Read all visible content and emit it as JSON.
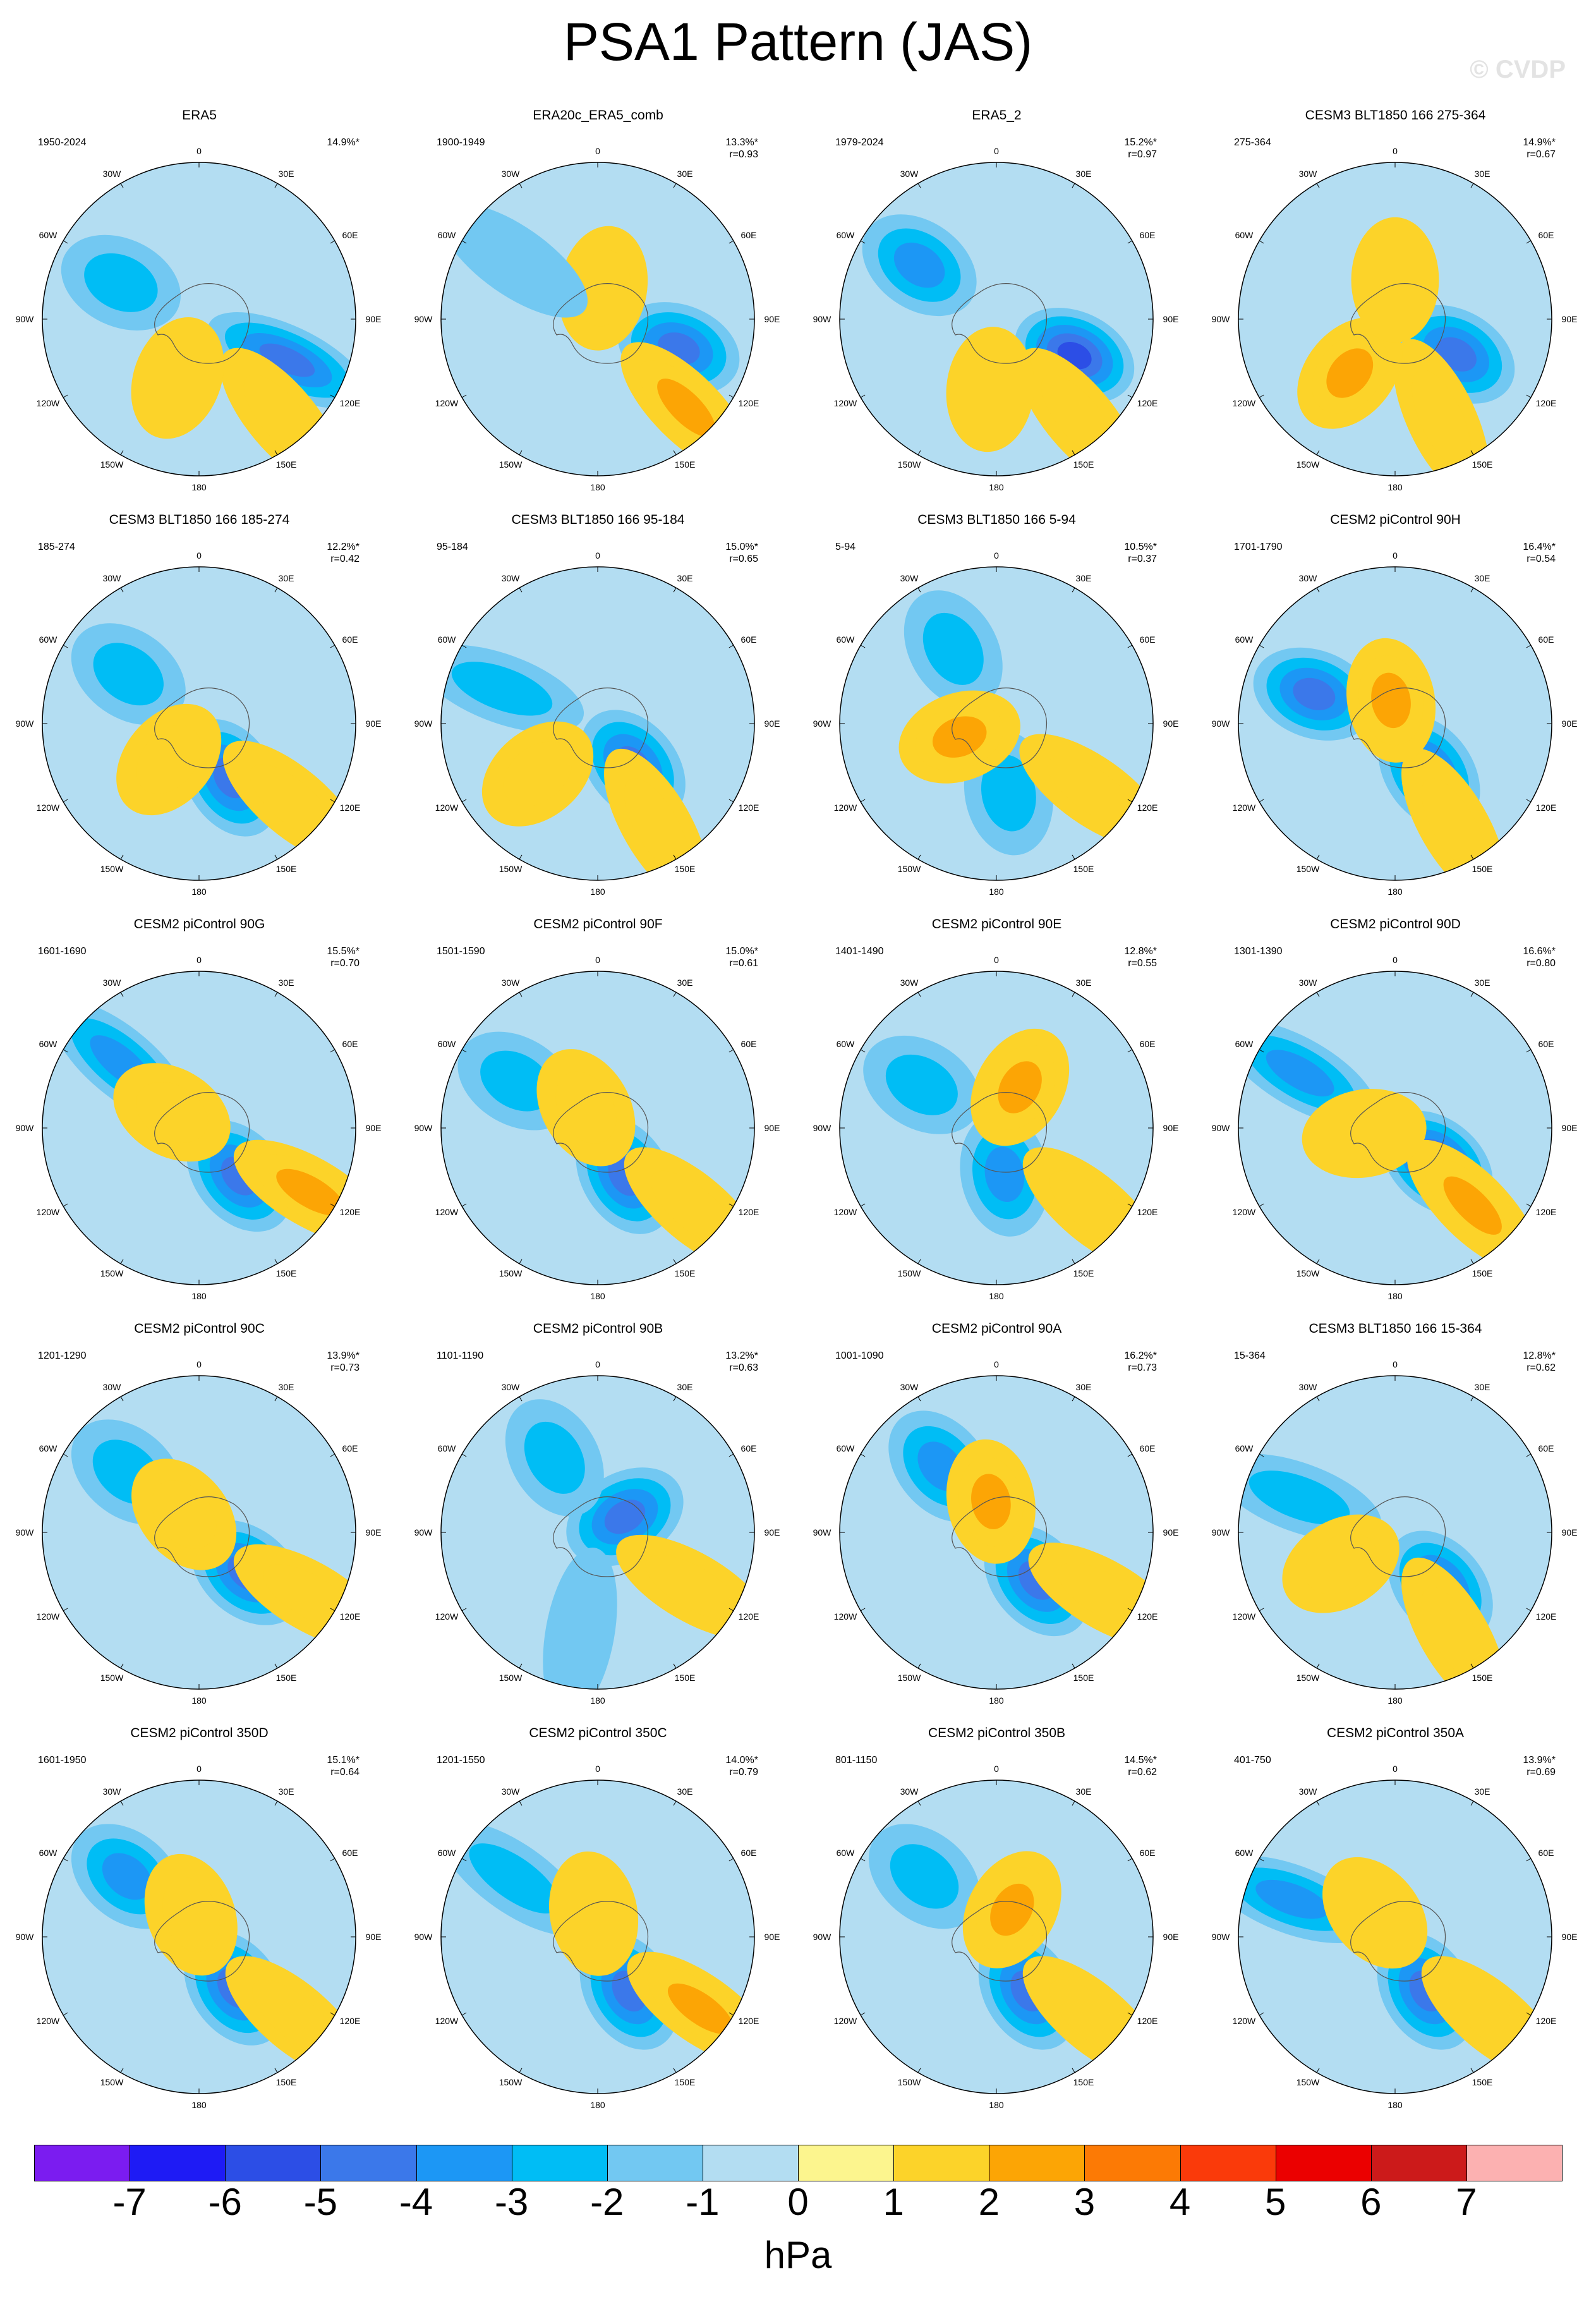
{
  "title": "PSA1 Pattern (JAS)",
  "watermark": "© CVDP",
  "longitude_labels": [
    "0",
    "30E",
    "60E",
    "90E",
    "120E",
    "150E",
    "180",
    "150W",
    "120W",
    "90W",
    "60W",
    "30W"
  ],
  "chart_data": {
    "type": "polar contour map (Southern Hemisphere)",
    "variable": "PSA1 pattern regression",
    "units": "hPa",
    "contour_levels": [
      -7,
      -6,
      -5,
      -4,
      -3,
      -2,
      -1,
      0,
      1,
      2,
      3,
      4,
      5,
      6,
      7
    ],
    "colorbar_colors": [
      "#7b1cf0",
      "#1e1bf5",
      "#2c4ee6",
      "#3b78ea",
      "#1c97f5",
      "#00bdf5",
      "#72c8f2",
      "#b3ddf2",
      "#fcf58e",
      "#fcd329",
      "#fca505",
      "#fc7a05",
      "#fa3a0a",
      "#eb0000",
      "#cc1a1a",
      "#fcb1b1"
    ],
    "panels": [
      {
        "title": "ERA5",
        "years": "1950-2024",
        "pct": "14.9%*",
        "r": "",
        "features": [
          {
            "a": 115,
            "r": 0.62,
            "min": -4
          },
          {
            "a": 140,
            "r": 0.82,
            "min": 2
          },
          {
            "a": 295,
            "r": 0.55,
            "min": -2
          },
          {
            "a": 200,
            "r": 0.4,
            "min": 1
          }
        ]
      },
      {
        "title": "ERA20c_ERA5_comb",
        "years": "1900-1949",
        "pct": "13.3%*",
        "r": "r=0.93",
        "features": [
          {
            "a": 110,
            "r": 0.55,
            "min": -4
          },
          {
            "a": 135,
            "r": 0.8,
            "min": 3
          },
          {
            "a": 10,
            "r": 0.2,
            "min": 2
          },
          {
            "a": 305,
            "r": 0.65,
            "min": -1
          }
        ]
      },
      {
        "title": "ERA5_2",
        "years": "1979-2024",
        "pct": "15.2%*",
        "r": "r=0.97",
        "features": [
          {
            "a": 115,
            "r": 0.55,
            "min": -5
          },
          {
            "a": 140,
            "r": 0.82,
            "min": 2
          },
          {
            "a": 305,
            "r": 0.6,
            "min": -3
          },
          {
            "a": 185,
            "r": 0.45,
            "min": 1
          }
        ]
      },
      {
        "title": "CESM3 BLT1850 166 275-364",
        "years": "275-364",
        "pct": "14.9%*",
        "r": "r=0.67",
        "features": [
          {
            "a": 120,
            "r": 0.45,
            "min": -4
          },
          {
            "a": 155,
            "r": 0.7,
            "min": 2
          },
          {
            "a": 220,
            "r": 0.45,
            "min": 3
          },
          {
            "a": 0,
            "r": 0.25,
            "min": 1
          }
        ]
      },
      {
        "title": "CESM3 BLT1850 166 185-274",
        "years": "185-274",
        "pct": "12.2%*",
        "r": "r=0.42",
        "features": [
          {
            "a": 150,
            "r": 0.4,
            "min": -4
          },
          {
            "a": 130,
            "r": 0.78,
            "min": 2
          },
          {
            "a": 305,
            "r": 0.55,
            "min": -2
          },
          {
            "a": 220,
            "r": 0.3,
            "min": 2
          }
        ]
      },
      {
        "title": "CESM3 BLT1850 166 95-184",
        "years": "95-184",
        "pct": "15.0%*",
        "r": "r=0.65",
        "features": [
          {
            "a": 140,
            "r": 0.35,
            "min": -4
          },
          {
            "a": 150,
            "r": 0.75,
            "min": 2
          },
          {
            "a": 290,
            "r": 0.65,
            "min": -2
          },
          {
            "a": 230,
            "r": 0.5,
            "min": 2
          }
        ]
      },
      {
        "title": "CESM3 BLT1850 166 5-94",
        "years": "5-94",
        "pct": "10.5%*",
        "r": "r=0.37",
        "features": [
          {
            "a": 170,
            "r": 0.45,
            "min": -2
          },
          {
            "a": 125,
            "r": 0.75,
            "min": 2
          },
          {
            "a": 330,
            "r": 0.55,
            "min": -2
          },
          {
            "a": 250,
            "r": 0.25,
            "min": 3
          }
        ]
      },
      {
        "title": "CESM2 piControl 90H",
        "years": "1701-1790",
        "pct": "16.4%*",
        "r": "r=0.54",
        "features": [
          {
            "a": 145,
            "r": 0.38,
            "min": -4
          },
          {
            "a": 150,
            "r": 0.75,
            "min": 2
          },
          {
            "a": 290,
            "r": 0.55,
            "min": -4
          },
          {
            "a": 350,
            "r": 0.15,
            "min": 3
          }
        ]
      },
      {
        "title": "CESM2 piControl 90G",
        "years": "1601-1690",
        "pct": "15.5%*",
        "r": "r=0.70",
        "features": [
          {
            "a": 140,
            "r": 0.4,
            "min": -4
          },
          {
            "a": 120,
            "r": 0.82,
            "min": 3
          },
          {
            "a": 310,
            "r": 0.65,
            "min": -3
          },
          {
            "a": 300,
            "r": 0.2,
            "min": 2
          }
        ]
      },
      {
        "title": "CESM2 piControl 90F",
        "years": "1501-1590",
        "pct": "15.0%*",
        "r": "r=0.61",
        "features": [
          {
            "a": 150,
            "r": 0.35,
            "min": -4
          },
          {
            "a": 130,
            "r": 0.8,
            "min": 2
          },
          {
            "a": 300,
            "r": 0.6,
            "min": -2
          },
          {
            "a": 330,
            "r": 0.15,
            "min": 2
          }
        ]
      },
      {
        "title": "CESM2 piControl 90E",
        "years": "1401-1490",
        "pct": "12.8%*",
        "r": "r=0.55",
        "features": [
          {
            "a": 170,
            "r": 0.3,
            "min": -3
          },
          {
            "a": 130,
            "r": 0.8,
            "min": 2
          },
          {
            "a": 300,
            "r": 0.55,
            "min": -2
          },
          {
            "a": 30,
            "r": 0.3,
            "min": 3
          }
        ]
      },
      {
        "title": "CESM2 piControl 90D",
        "years": "1301-1390",
        "pct": "16.6%*",
        "r": "r=0.80",
        "features": [
          {
            "a": 130,
            "r": 0.35,
            "min": -5
          },
          {
            "a": 135,
            "r": 0.7,
            "min": 3
          },
          {
            "a": 300,
            "r": 0.7,
            "min": -3
          },
          {
            "a": 260,
            "r": 0.2,
            "min": 1
          }
        ]
      },
      {
        "title": "CESM2 piControl 90C",
        "years": "1201-1290",
        "pct": "13.9%*",
        "r": "r=0.73",
        "features": [
          {
            "a": 130,
            "r": 0.4,
            "min": -4
          },
          {
            "a": 120,
            "r": 0.82,
            "min": 2
          },
          {
            "a": 310,
            "r": 0.6,
            "min": -2
          },
          {
            "a": 320,
            "r": 0.15,
            "min": 2
          }
        ]
      },
      {
        "title": "CESM2 piControl 90B",
        "years": "1101-1190",
        "pct": "13.2%*",
        "r": "r=0.63",
        "features": [
          {
            "a": 60,
            "r": 0.2,
            "min": -4
          },
          {
            "a": 120,
            "r": 0.7,
            "min": 2
          },
          {
            "a": 330,
            "r": 0.55,
            "min": -2
          },
          {
            "a": 190,
            "r": 0.65,
            "min": -1
          }
        ]
      },
      {
        "title": "CESM2 piControl 90A",
        "years": "1001-1090",
        "pct": "16.2%*",
        "r": "r=0.73",
        "features": [
          {
            "a": 140,
            "r": 0.4,
            "min": -4
          },
          {
            "a": 120,
            "r": 0.8,
            "min": 2
          },
          {
            "a": 320,
            "r": 0.55,
            "min": -3
          },
          {
            "a": 350,
            "r": 0.2,
            "min": 3
          }
        ]
      },
      {
        "title": "CESM3 BLT1850 166 15-364",
        "years": "15-364",
        "pct": "12.8%*",
        "r": "r=0.62",
        "features": [
          {
            "a": 140,
            "r": 0.45,
            "min": -4
          },
          {
            "a": 150,
            "r": 0.75,
            "min": 2
          },
          {
            "a": 290,
            "r": 0.65,
            "min": -2
          },
          {
            "a": 240,
            "r": 0.4,
            "min": 2
          }
        ]
      },
      {
        "title": "CESM2 piControl 350D",
        "years": "1601-1950",
        "pct": "15.1%*",
        "r": "r=0.64",
        "features": [
          {
            "a": 145,
            "r": 0.4,
            "min": -4
          },
          {
            "a": 130,
            "r": 0.8,
            "min": 2
          },
          {
            "a": 310,
            "r": 0.6,
            "min": -3
          },
          {
            "a": 340,
            "r": 0.15,
            "min": 2
          }
        ]
      },
      {
        "title": "CESM2 piControl 350C",
        "years": "1201-1550",
        "pct": "14.0%*",
        "r": "r=0.79",
        "features": [
          {
            "a": 150,
            "r": 0.4,
            "min": -4
          },
          {
            "a": 125,
            "r": 0.8,
            "min": 3
          },
          {
            "a": 305,
            "r": 0.65,
            "min": -2
          },
          {
            "a": 350,
            "r": 0.15,
            "min": 1
          }
        ]
      },
      {
        "title": "CESM2 piControl 350B",
        "years": "801-1150",
        "pct": "14.5%*",
        "r": "r=0.62",
        "features": [
          {
            "a": 150,
            "r": 0.4,
            "min": -4
          },
          {
            "a": 130,
            "r": 0.8,
            "min": 2
          },
          {
            "a": 310,
            "r": 0.6,
            "min": -2
          },
          {
            "a": 30,
            "r": 0.2,
            "min": 3
          }
        ]
      },
      {
        "title": "CESM2 piControl 350A",
        "years": "401-750",
        "pct": "13.9%*",
        "r": "r=0.69",
        "features": [
          {
            "a": 150,
            "r": 0.4,
            "min": -4
          },
          {
            "a": 130,
            "r": 0.8,
            "min": 2
          },
          {
            "a": 290,
            "r": 0.7,
            "min": -3
          },
          {
            "a": 320,
            "r": 0.2,
            "min": 1
          }
        ]
      }
    ]
  }
}
